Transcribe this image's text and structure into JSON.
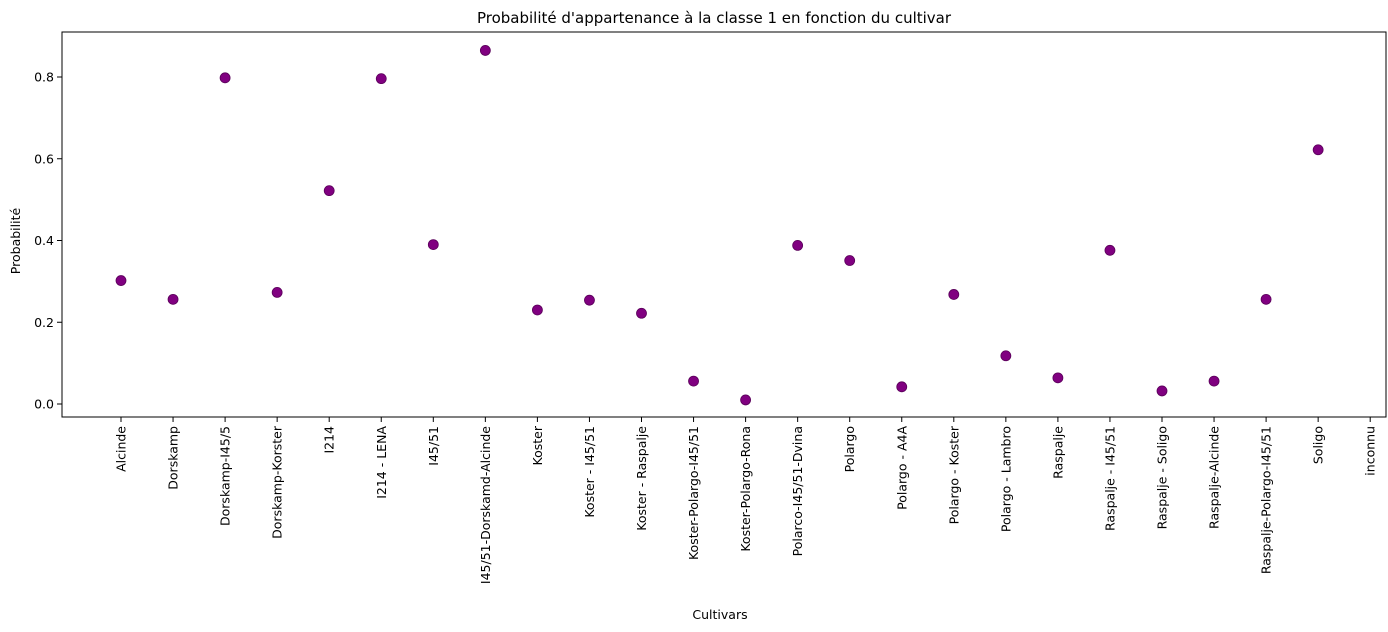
{
  "chart_data": {
    "type": "scatter",
    "title": "Probabilité d'appartenance à la classe 1 en fonction du cultivar",
    "xlabel": "Cultivars",
    "ylabel": "Probabilité",
    "ylim": [
      -0.03,
      0.91
    ],
    "yticks": [
      "0.0",
      "0.2",
      "0.4",
      "0.6",
      "0.8"
    ],
    "grid": false,
    "marker_color": "#800080",
    "categories": [
      "Alcinde",
      "Dorskamp",
      "Dorskamp-I45/5",
      "Dorskamp-Korster",
      "I214",
      "I214 - LENA",
      "I45/51",
      "I45/51-Dorskamd-Alcinde",
      "Koster",
      "Koster - I45/51",
      "Koster - Raspalje",
      "Koster-Polargo-I45/51",
      "Koster-Polargo-Rona",
      "Polarco-I45/51-Dvina",
      "Polargo",
      "Polargo - A4A",
      "Polargo - Koster",
      "Polargo - Lambro",
      "Raspalje",
      "Raspalje - I45/51",
      "Raspalje - Soligo",
      "Raspalje-Alcinde",
      "Raspalje-Polargo-I45/51",
      "Soligo",
      "inconnu"
    ],
    "values": [
      0.302,
      0.256,
      0.798,
      0.273,
      0.522,
      0.796,
      0.39,
      0.865,
      0.23,
      0.254,
      0.222,
      0.056,
      0.01,
      0.388,
      0.351,
      0.042,
      0.268,
      0.118,
      0.064,
      0.376,
      0.032,
      0.056,
      0.256,
      0.622,
      null
    ]
  }
}
